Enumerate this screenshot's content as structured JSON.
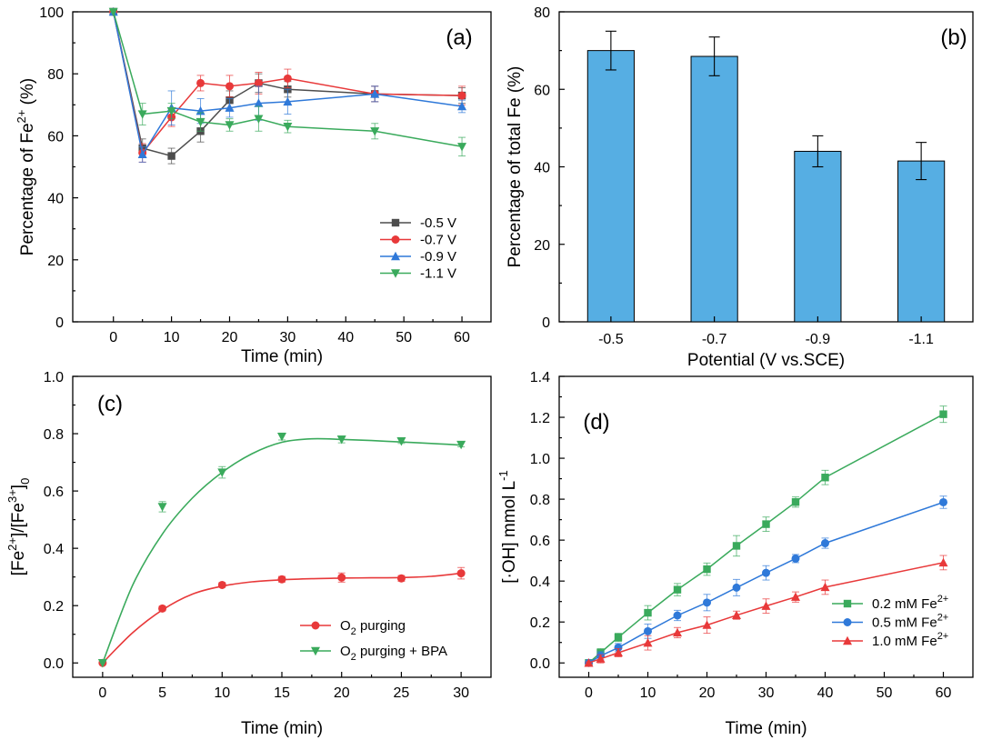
{
  "chart_data": [
    {
      "panel": "(a)",
      "type": "line",
      "xlabel": "Time (min)",
      "ylabel": "Percentage of Fe2+ (%)",
      "xlim": [
        -7,
        65
      ],
      "ylim": [
        0,
        100
      ],
      "xticks": [
        0,
        10,
        20,
        30,
        40,
        50,
        60
      ],
      "yticks": [
        0,
        20,
        40,
        60,
        80,
        100
      ],
      "legend_position": "bottom-right",
      "series": [
        {
          "name": "-0.5 V",
          "color": "#4d4d4d",
          "marker": "square",
          "x": [
            0,
            5,
            10,
            15,
            20,
            25,
            30,
            45,
            60
          ],
          "y": [
            100,
            56,
            53.5,
            61.5,
            71.5,
            77,
            75,
            73.5,
            73
          ],
          "err": [
            0,
            3,
            2.5,
            3.5,
            3,
            3,
            2.5,
            2.5,
            2.5
          ]
        },
        {
          "name": "-0.7 V",
          "color": "#e8393a",
          "marker": "circle",
          "x": [
            0,
            5,
            10,
            15,
            20,
            25,
            30,
            45,
            60
          ],
          "y": [
            100,
            54.5,
            66,
            77,
            76,
            77,
            78.5,
            73.5,
            73
          ],
          "err": [
            0,
            3,
            3,
            2.5,
            3.5,
            3.5,
            3,
            2.5,
            3
          ]
        },
        {
          "name": "-0.9 V",
          "color": "#2f79d9",
          "marker": "triangle-up",
          "x": [
            0,
            5,
            10,
            15,
            20,
            25,
            30,
            45,
            60
          ],
          "y": [
            100,
            54,
            69,
            68,
            69,
            70.5,
            71,
            73.5,
            69.5
          ],
          "err": [
            0,
            2.5,
            5.5,
            4,
            3,
            5.5,
            4,
            2.5,
            2
          ]
        },
        {
          "name": "-1.1 V",
          "color": "#3aaa5c",
          "marker": "triangle-down",
          "x": [
            0,
            5,
            10,
            15,
            20,
            25,
            30,
            45,
            60
          ],
          "y": [
            100,
            67,
            68,
            64.5,
            63.5,
            65.5,
            63,
            61.5,
            56.5
          ],
          "err": [
            0,
            3.5,
            2.5,
            3,
            2,
            4,
            2,
            2.5,
            3
          ]
        }
      ]
    },
    {
      "panel": "(b)",
      "type": "bar",
      "xlabel": "Potential (V vs.SCE)",
      "ylabel": "Percentage of total Fe (%)",
      "ylim": [
        0,
        80
      ],
      "yticks": [
        0,
        20,
        40,
        60,
        80
      ],
      "categories": [
        "-0.5",
        "-0.7",
        "-0.9",
        "-1.1"
      ],
      "values": [
        70,
        68.5,
        44,
        41.5
      ],
      "err": [
        5,
        5,
        4,
        4.8
      ],
      "color": "#56aee3"
    },
    {
      "panel": "(c)",
      "type": "scatter",
      "xlabel": "Time (min)",
      "ylabel": "[Fe2+]/[Fe3+]0",
      "xlim": [
        -2.5,
        32.5
      ],
      "ylim": [
        -0.05,
        1.0
      ],
      "xticks": [
        0,
        5,
        10,
        15,
        20,
        25,
        30
      ],
      "yticks": [
        0.0,
        0.2,
        0.4,
        0.6,
        0.8,
        1.0
      ],
      "legend_position": "bottom-right",
      "series": [
        {
          "name": "O2 purging",
          "color": "#e8393a",
          "marker": "circle",
          "x": [
            0,
            5,
            10,
            15,
            20,
            25,
            30
          ],
          "y": [
            0,
            0.19,
            0.272,
            0.292,
            0.298,
            0.295,
            0.313
          ],
          "err": [
            0,
            0.008,
            0.008,
            0.01,
            0.016,
            0.01,
            0.02
          ],
          "fit_x": [
            0,
            2.5,
            5,
            7.5,
            10,
            12.5,
            15,
            17.5,
            20,
            22.5,
            25,
            27.5,
            30
          ],
          "fit_y": [
            0,
            0.105,
            0.185,
            0.24,
            0.268,
            0.283,
            0.29,
            0.294,
            0.296,
            0.297,
            0.298,
            0.302,
            0.313
          ]
        },
        {
          "name": "O2 purging + BPA",
          "color": "#3aaa5c",
          "marker": "triangle-down",
          "x": [
            0,
            5,
            10,
            15,
            20,
            25,
            30
          ],
          "y": [
            0,
            0.545,
            0.665,
            0.79,
            0.78,
            0.774,
            0.762
          ],
          "err": [
            0,
            0.018,
            0.02,
            0.012,
            0.012,
            0.008,
            0.008
          ],
          "fit_x": [
            0,
            2.5,
            5,
            7.5,
            10,
            12.5,
            15,
            17.5,
            20,
            22.5,
            25,
            27.5,
            30
          ],
          "fit_y": [
            0,
            0.27,
            0.45,
            0.575,
            0.665,
            0.73,
            0.77,
            0.782,
            0.78,
            0.776,
            0.771,
            0.766,
            0.76
          ]
        }
      ]
    },
    {
      "panel": "(d)",
      "type": "line",
      "xlabel": "Time (min)",
      "ylabel": "[·OH] mmol L-1",
      "xlim": [
        -5,
        65
      ],
      "ylim": [
        -0.07,
        1.4
      ],
      "xticks": [
        0,
        10,
        20,
        30,
        40,
        50,
        60
      ],
      "yticks": [
        0.0,
        0.2,
        0.4,
        0.6,
        0.8,
        1.0,
        1.2,
        1.4
      ],
      "legend_position": "bottom-right",
      "series": [
        {
          "name": "0.2 mM Fe2+",
          "color": "#3aaa5c",
          "marker": "square",
          "x": [
            0,
            2,
            5,
            10,
            15,
            20,
            25,
            30,
            35,
            40,
            60
          ],
          "y": [
            0,
            0.05,
            0.125,
            0.245,
            0.358,
            0.458,
            0.572,
            0.678,
            0.786,
            0.906,
            1.215
          ],
          "err": [
            0.005,
            0.02,
            0.02,
            0.035,
            0.03,
            0.03,
            0.05,
            0.035,
            0.025,
            0.035,
            0.04
          ]
        },
        {
          "name": "0.5 mM Fe2+",
          "color": "#2f79d9",
          "marker": "circle",
          "x": [
            0,
            2,
            5,
            10,
            15,
            20,
            25,
            30,
            35,
            40,
            60
          ],
          "y": [
            0,
            0.035,
            0.075,
            0.155,
            0.232,
            0.295,
            0.368,
            0.44,
            0.51,
            0.585,
            0.785
          ],
          "err": [
            0.005,
            0.02,
            0.02,
            0.035,
            0.025,
            0.04,
            0.04,
            0.035,
            0.02,
            0.025,
            0.03
          ]
        },
        {
          "name": "1.0 mM Fe2+",
          "color": "#e8393a",
          "marker": "triangle-up",
          "x": [
            0,
            2,
            5,
            10,
            15,
            20,
            25,
            30,
            35,
            40,
            60
          ],
          "y": [
            0,
            0.02,
            0.05,
            0.098,
            0.148,
            0.185,
            0.233,
            0.278,
            0.322,
            0.37,
            0.49
          ],
          "err": [
            0.005,
            0.02,
            0.02,
            0.035,
            0.025,
            0.04,
            0.02,
            0.035,
            0.025,
            0.035,
            0.035
          ]
        }
      ]
    }
  ]
}
